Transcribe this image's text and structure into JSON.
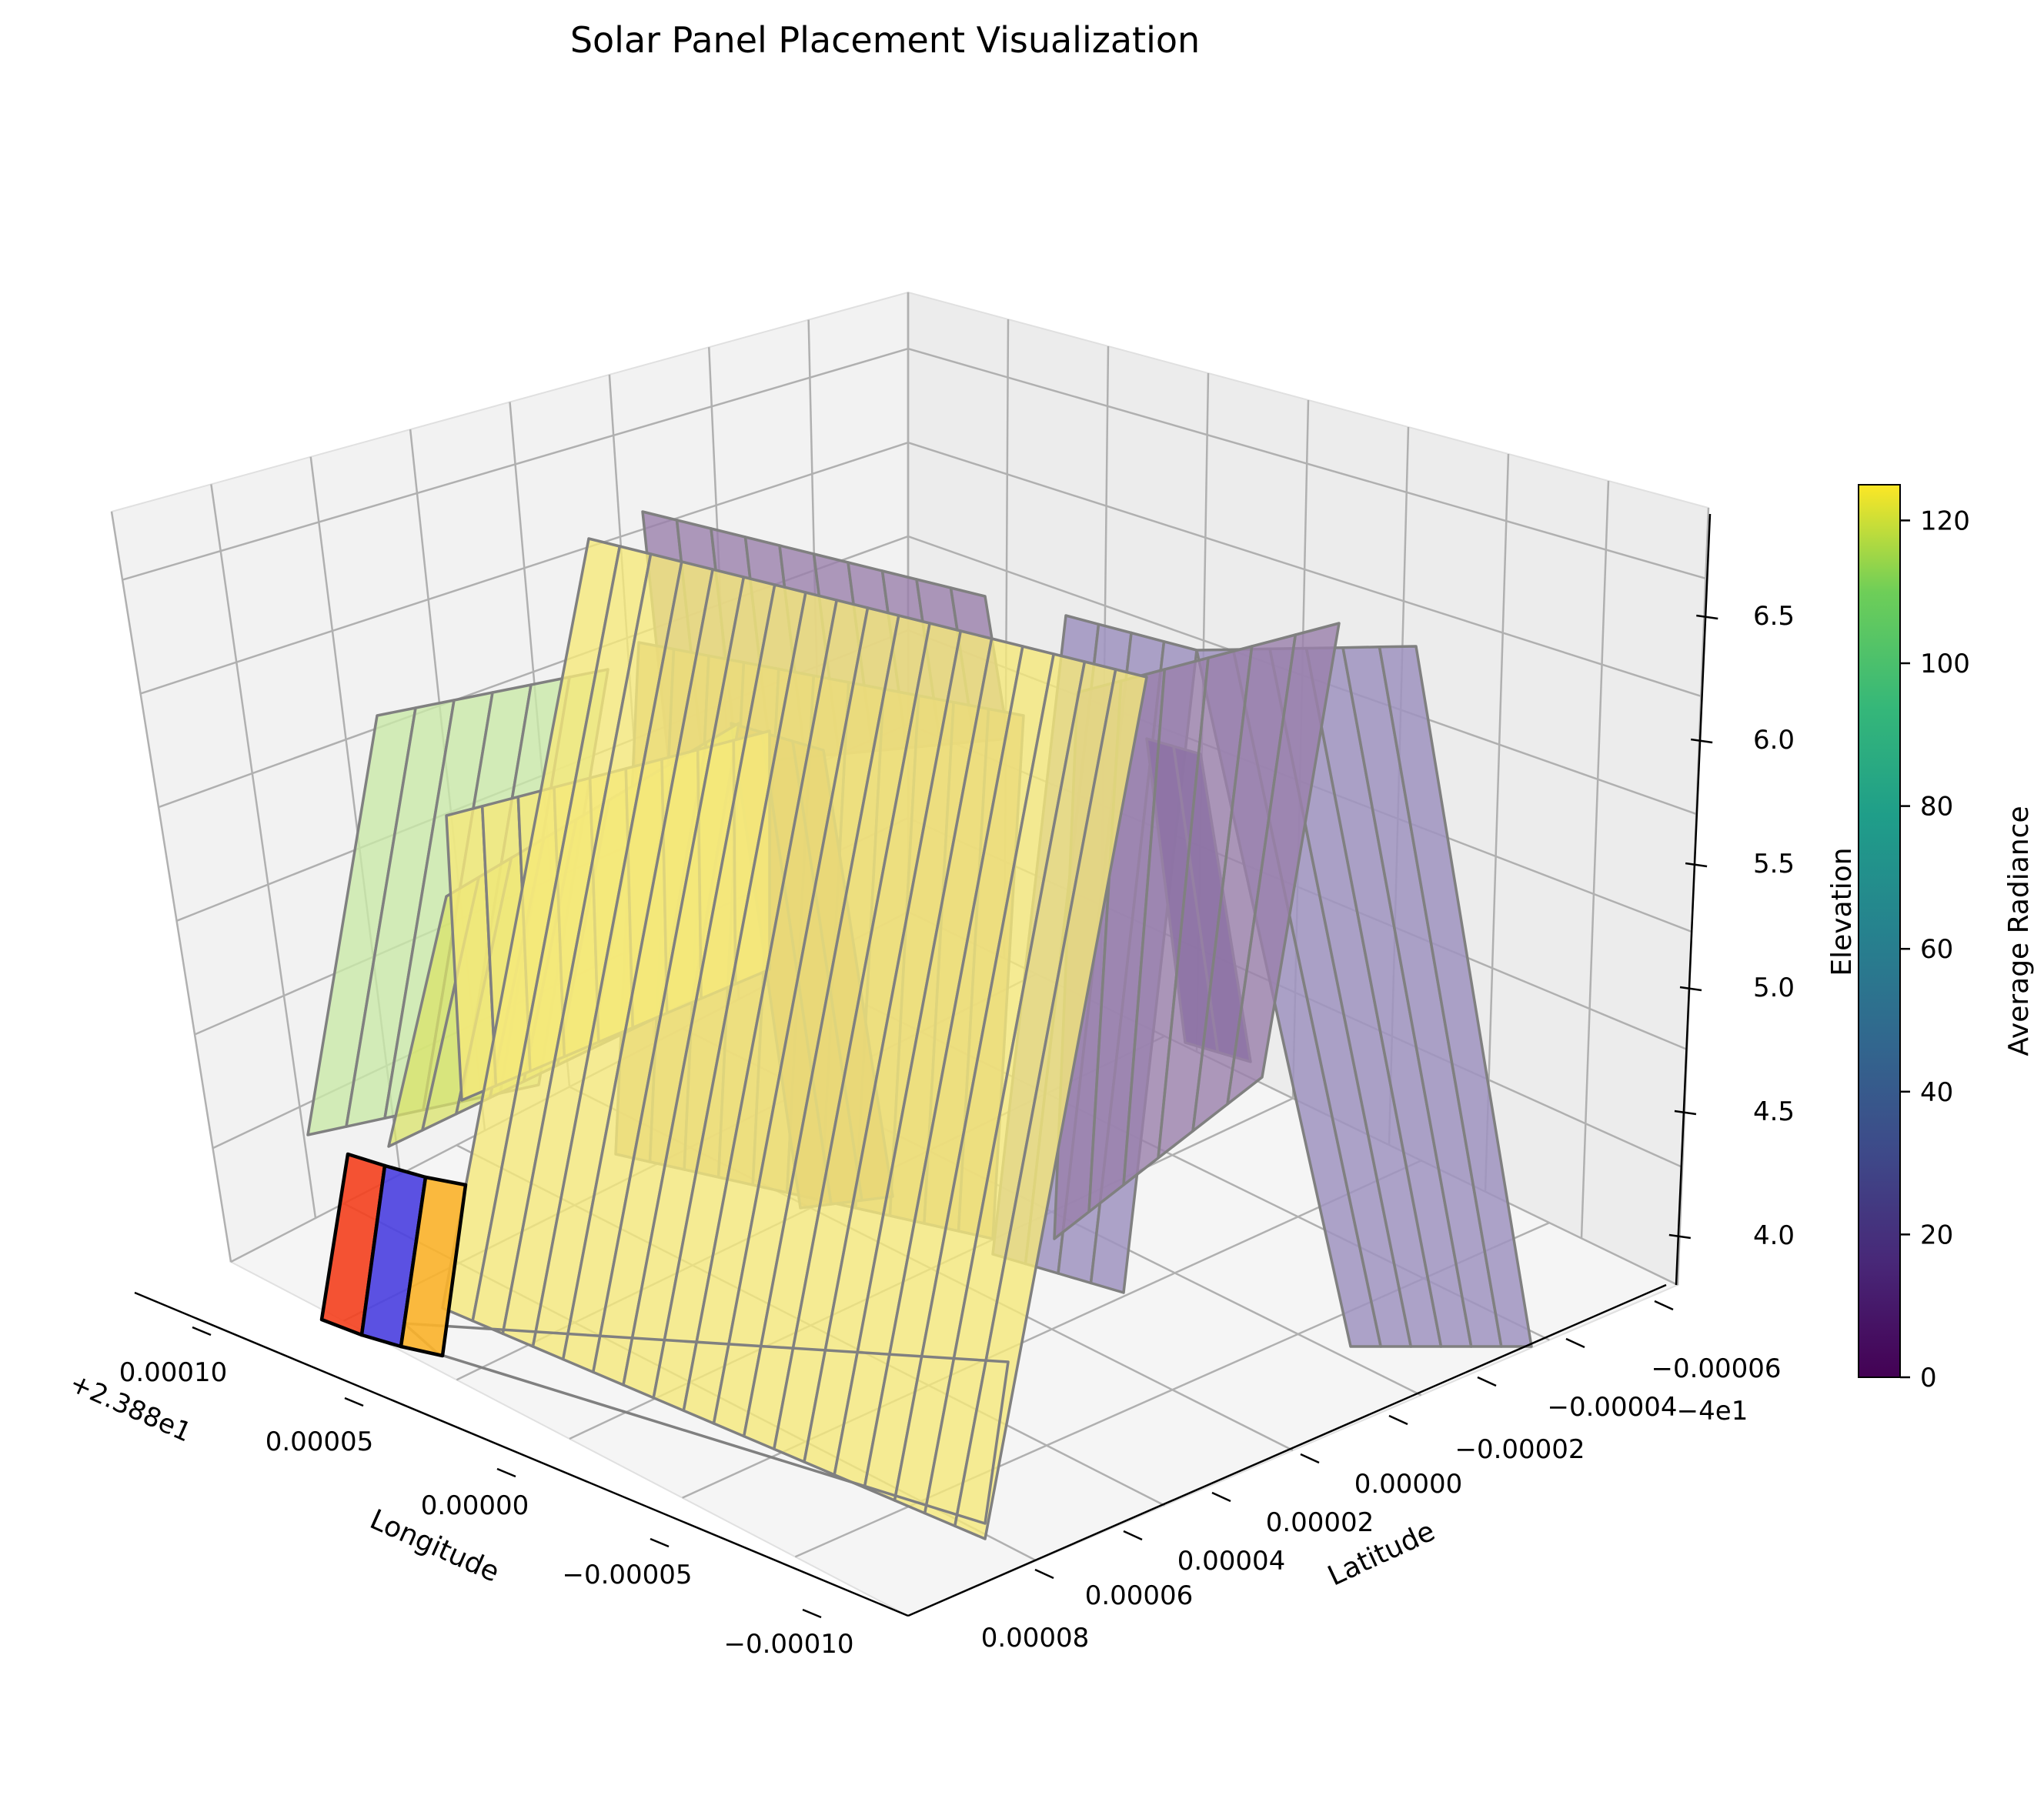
{
  "chart_data": {
    "type": "3d-surface",
    "title": "Solar Panel Placement Visualization",
    "xlabel": "Longitude",
    "ylabel": "Latitude",
    "zlabel": "Elevation",
    "x_offset_label": "+2.388e1",
    "y_offset_label": "−4e1",
    "x_ticks": [
      "0.00010",
      "0.00005",
      "0.00000",
      "−0.00005",
      "−0.00010"
    ],
    "y_ticks": [
      "−0.00006",
      "−0.00004",
      "−0.00002",
      "0.00000",
      "0.00002",
      "0.00004",
      "0.00006",
      "0.00008"
    ],
    "z_ticks": [
      "4.0",
      "4.5",
      "5.0",
      "5.5",
      "6.0",
      "6.5"
    ],
    "zlim": [
      3.8,
      6.85
    ],
    "colorbar": {
      "label": "Average Radiance",
      "colormap": "viridis",
      "range": [
        0,
        125
      ],
      "ticks": [
        "0",
        "20",
        "40",
        "60",
        "80",
        "100",
        "120"
      ]
    },
    "panel_groups": [
      {
        "name_visible": false,
        "radiance": 120,
        "color": "#f5e97a"
      },
      {
        "name_visible": false,
        "radiance": 110,
        "color": "#d9e36a"
      },
      {
        "name_visible": false,
        "radiance": 100,
        "color": "#c9e8a8"
      },
      {
        "name_visible": false,
        "radiance": 18,
        "color": "#9a7fab"
      },
      {
        "name_visible": false,
        "radiance": 20,
        "color": "#9f93c0"
      },
      {
        "name_visible": false,
        "radiance": 10,
        "color": "#5c3f8c"
      }
    ],
    "highlighted_panels": [
      {
        "color": "#f4401e"
      },
      {
        "color": "#4a3fe0"
      },
      {
        "color": "#fbb22a"
      }
    ]
  }
}
